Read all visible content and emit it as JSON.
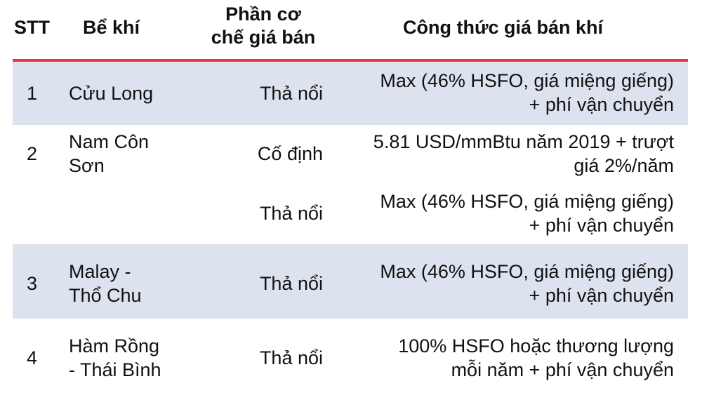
{
  "header": {
    "stt": "STT",
    "be_khi": "Bể khí",
    "phan_co_che_line1": "Phần cơ",
    "phan_co_che_line2": "chế giá bán",
    "cong_thuc": "Công thức giá bán khí"
  },
  "colors": {
    "divider": "#e8383d",
    "row_shade": "#dde3ee"
  },
  "rows": [
    {
      "stt": "1",
      "be_khi": "Cửu Long",
      "co_che": "Thả nổi",
      "cong_thuc_line1": "Max (46% HSFO, giá miệng giếng)",
      "cong_thuc_line2": "+ phí vận chuyển"
    },
    {
      "stt": "2",
      "be_khi_line1": "Nam Côn",
      "be_khi_line2": "Sơn",
      "co_che": "Cố định",
      "cong_thuc_line1": "5.81 USD/mmBtu năm 2019 + trượt",
      "cong_thuc_line2": "giá 2%/năm"
    },
    {
      "co_che": "Thả nổi",
      "cong_thuc_line1": "Max (46% HSFO, giá miệng giếng)",
      "cong_thuc_line2": "+ phí vận chuyển"
    },
    {
      "stt": "3",
      "be_khi_line1": "Malay -",
      "be_khi_line2": "Thổ Chu",
      "co_che": "Thả nổi",
      "cong_thuc_line1": "Max (46% HSFO, giá miệng giếng)",
      "cong_thuc_line2": "+ phí vận chuyển"
    },
    {
      "stt": "4",
      "be_khi_line1": "Hàm Rồng",
      "be_khi_line2": "- Thái Bình",
      "co_che": "Thả nổi",
      "cong_thuc_line1": "100% HSFO hoặc thương lượng",
      "cong_thuc_line2": "mỗi năm  + phí vận chuyển"
    }
  ]
}
